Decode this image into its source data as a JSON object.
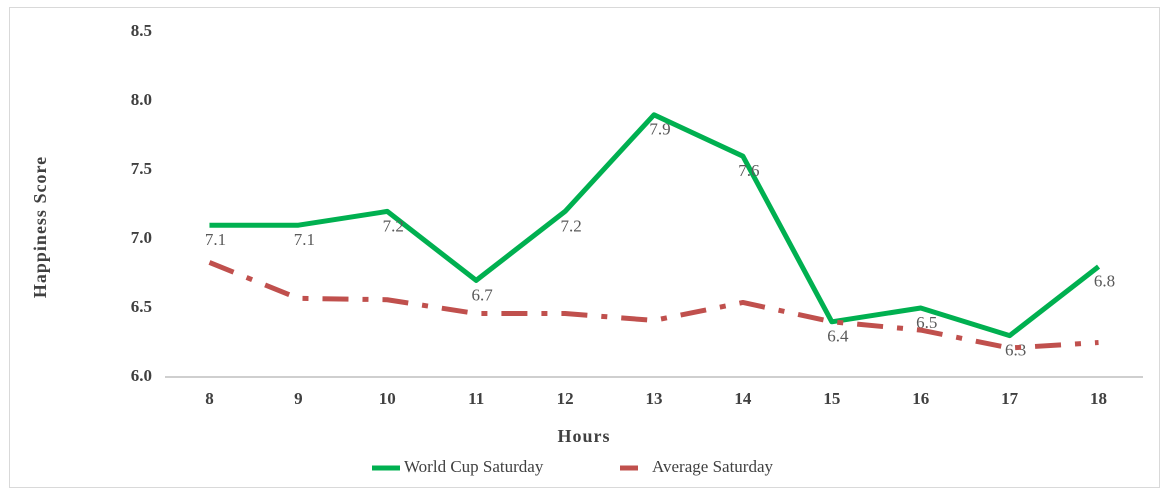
{
  "chart_data": {
    "type": "line",
    "x_label": "Hours",
    "y_label": "Happiness Score",
    "categories": [
      "8",
      "9",
      "10",
      "11",
      "12",
      "13",
      "14",
      "15",
      "16",
      "17",
      "18"
    ],
    "series": [
      {
        "name": "World Cup Saturday",
        "color": "#00b050",
        "dash": "solid",
        "data_labels": true,
        "values": [
          7.1,
          7.1,
          7.2,
          6.7,
          7.2,
          7.9,
          7.6,
          6.4,
          6.5,
          6.3,
          6.8
        ]
      },
      {
        "name": "Average Saturday",
        "color": "#c0504d",
        "dash": "dashdot",
        "data_labels": false,
        "values": [
          6.83,
          6.57,
          6.56,
          6.46,
          6.46,
          6.41,
          6.54,
          6.4,
          6.34,
          6.21,
          6.25
        ]
      }
    ],
    "ylim": [
      6,
      8.5
    ],
    "yticks": [
      {
        "value": 6,
        "label": "6.0"
      },
      6.5,
      {
        "value": 7,
        "label": "7.0"
      },
      7.5,
      {
        "value": 8,
        "label": "8.0"
      },
      8.5
    ],
    "legend": "bottom"
  }
}
